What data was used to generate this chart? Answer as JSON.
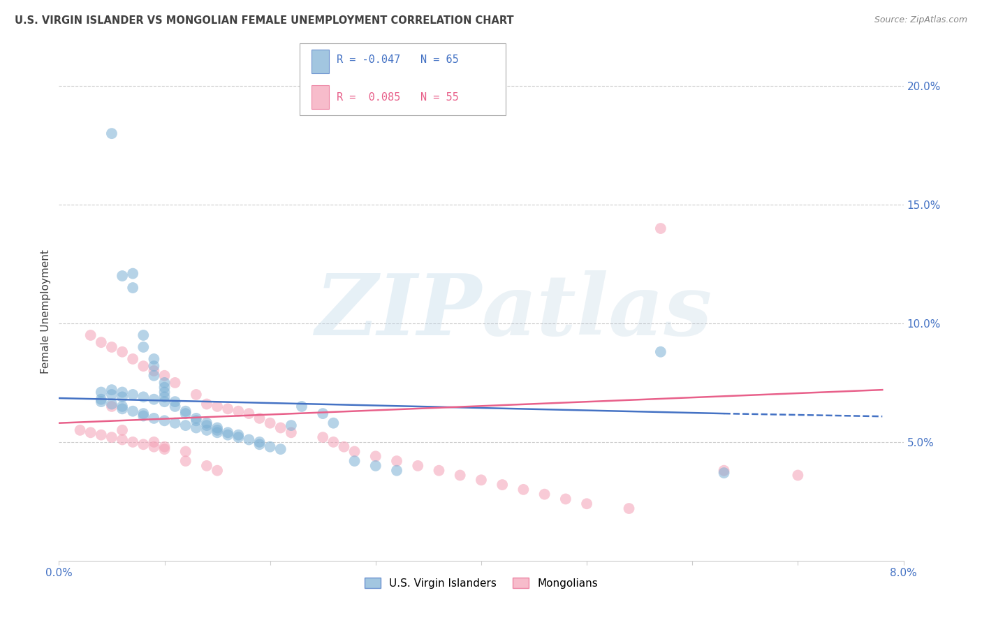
{
  "title": "U.S. VIRGIN ISLANDER VS MONGOLIAN FEMALE UNEMPLOYMENT CORRELATION CHART",
  "source": "Source: ZipAtlas.com",
  "ylabel": "Female Unemployment",
  "watermark_zip": "ZIP",
  "watermark_atlas": "atlas",
  "xlim": [
    0.0,
    0.08
  ],
  "ylim": [
    0.0,
    0.21
  ],
  "yticks_right": [
    0.05,
    0.1,
    0.15,
    0.2
  ],
  "ytick_labels_right": [
    "5.0%",
    "10.0%",
    "15.0%",
    "20.0%"
  ],
  "legend_r1": "R = -0.047",
  "legend_n1": "N = 65",
  "legend_r2": "R =  0.085",
  "legend_n2": "N = 55",
  "blue_color": "#7BAFD4",
  "pink_color": "#F4A0B5",
  "trend_blue": "#4472C4",
  "trend_pink": "#E8608A",
  "blue_scatter_x": [
    0.005,
    0.006,
    0.007,
    0.007,
    0.008,
    0.008,
    0.009,
    0.009,
    0.009,
    0.01,
    0.01,
    0.01,
    0.01,
    0.011,
    0.011,
    0.012,
    0.012,
    0.013,
    0.013,
    0.014,
    0.014,
    0.015,
    0.015,
    0.016,
    0.017,
    0.017,
    0.018,
    0.019,
    0.019,
    0.02,
    0.021,
    0.022,
    0.023,
    0.025,
    0.026,
    0.028,
    0.03,
    0.032,
    0.004,
    0.004,
    0.005,
    0.006,
    0.006,
    0.007,
    0.008,
    0.008,
    0.009,
    0.01,
    0.011,
    0.012,
    0.013,
    0.014,
    0.015,
    0.016,
    0.004,
    0.005,
    0.006,
    0.057,
    0.063,
    0.005,
    0.006,
    0.007,
    0.008,
    0.009,
    0.01
  ],
  "blue_scatter_y": [
    0.18,
    0.12,
    0.121,
    0.115,
    0.095,
    0.09,
    0.085,
    0.082,
    0.078,
    0.075,
    0.073,
    0.071,
    0.069,
    0.067,
    0.065,
    0.063,
    0.062,
    0.06,
    0.059,
    0.058,
    0.057,
    0.056,
    0.055,
    0.054,
    0.053,
    0.052,
    0.051,
    0.05,
    0.049,
    0.048,
    0.047,
    0.057,
    0.065,
    0.062,
    0.058,
    0.042,
    0.04,
    0.038,
    0.068,
    0.067,
    0.066,
    0.065,
    0.064,
    0.063,
    0.062,
    0.061,
    0.06,
    0.059,
    0.058,
    0.057,
    0.056,
    0.055,
    0.054,
    0.053,
    0.071,
    0.07,
    0.069,
    0.088,
    0.037,
    0.072,
    0.071,
    0.07,
    0.069,
    0.068,
    0.067
  ],
  "pink_scatter_x": [
    0.003,
    0.004,
    0.005,
    0.005,
    0.006,
    0.006,
    0.007,
    0.008,
    0.009,
    0.009,
    0.01,
    0.01,
    0.011,
    0.012,
    0.013,
    0.014,
    0.015,
    0.015,
    0.016,
    0.017,
    0.018,
    0.019,
    0.02,
    0.021,
    0.022,
    0.025,
    0.026,
    0.027,
    0.028,
    0.03,
    0.032,
    0.034,
    0.036,
    0.038,
    0.04,
    0.042,
    0.044,
    0.046,
    0.048,
    0.05,
    0.054,
    0.002,
    0.003,
    0.004,
    0.005,
    0.006,
    0.007,
    0.008,
    0.009,
    0.01,
    0.012,
    0.014,
    0.057,
    0.063,
    0.07
  ],
  "pink_scatter_y": [
    0.095,
    0.092,
    0.09,
    0.065,
    0.088,
    0.055,
    0.085,
    0.082,
    0.08,
    0.05,
    0.078,
    0.048,
    0.075,
    0.042,
    0.07,
    0.066,
    0.065,
    0.038,
    0.064,
    0.063,
    0.062,
    0.06,
    0.058,
    0.056,
    0.054,
    0.052,
    0.05,
    0.048,
    0.046,
    0.044,
    0.042,
    0.04,
    0.038,
    0.036,
    0.034,
    0.032,
    0.03,
    0.028,
    0.026,
    0.024,
    0.022,
    0.055,
    0.054,
    0.053,
    0.052,
    0.051,
    0.05,
    0.049,
    0.048,
    0.047,
    0.046,
    0.04,
    0.14,
    0.038,
    0.036
  ],
  "blue_trend_start_x": 0.0,
  "blue_trend_start_y": 0.0685,
  "blue_trend_solid_end_x": 0.063,
  "blue_trend_solid_end_y": 0.062,
  "blue_trend_end_x": 0.078,
  "blue_trend_end_y": 0.0608,
  "pink_trend_start_x": 0.0,
  "pink_trend_start_y": 0.058,
  "pink_trend_end_x": 0.078,
  "pink_trend_end_y": 0.072,
  "background_color": "#FFFFFF",
  "grid_color": "#CCCCCC",
  "title_color": "#404040",
  "axis_label_color": "#404040",
  "tick_color": "#4472C4",
  "legend_label1": "U.S. Virgin Islanders",
  "legend_label2": "Mongolians"
}
